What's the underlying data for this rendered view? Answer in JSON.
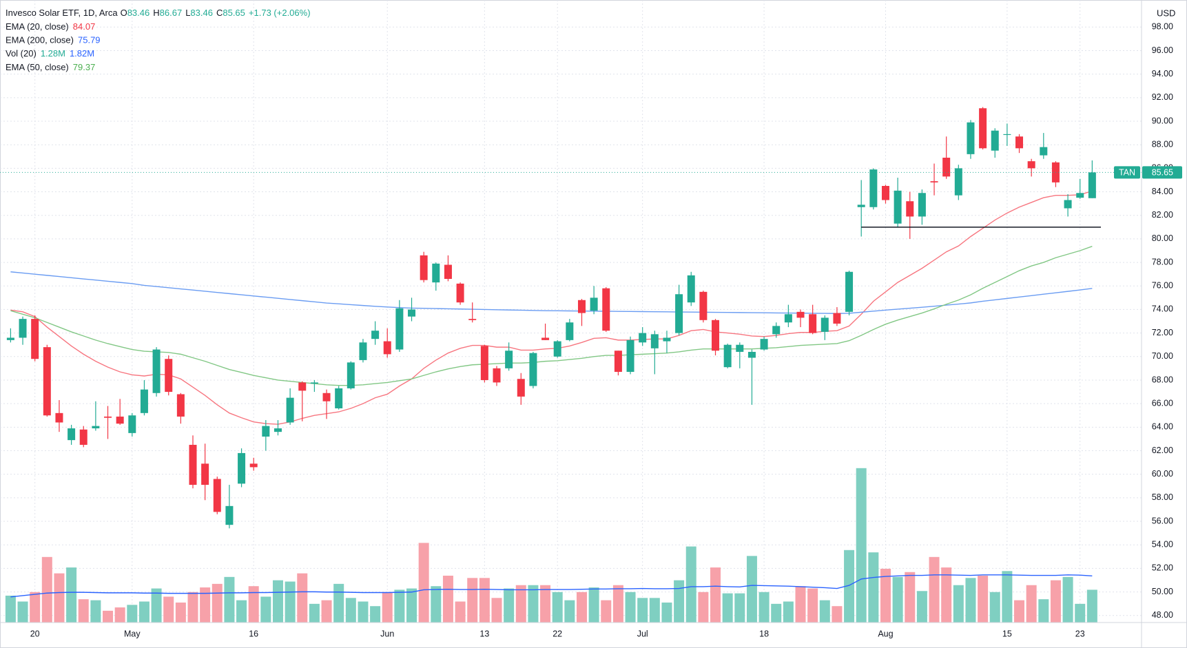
{
  "chart_data": {
    "type": "candlestick",
    "title": "Invesco Solar ETF, 1D, Arca",
    "ohlc_labels": [
      {
        "key": "O",
        "value": "83.46"
      },
      {
        "key": "H",
        "value": "86.67"
      },
      {
        "key": "L",
        "value": "83.46"
      },
      {
        "key": "C",
        "value": "85.65"
      }
    ],
    "change": "+1.73 (+2.06%)",
    "currency": "USD",
    "up_color": "#22ab94",
    "down_color": "#f23645",
    "volume_up_color": "#7fcfc1",
    "volume_down_color": "#f7a1a9",
    "grid": true,
    "categories": [
      null,
      null,
      "20",
      null,
      null,
      null,
      null,
      null,
      null,
      null,
      "May",
      null,
      null,
      null,
      null,
      null,
      null,
      null,
      null,
      null,
      "16",
      null,
      null,
      null,
      null,
      null,
      null,
      null,
      null,
      null,
      null,
      "Jun",
      null,
      null,
      null,
      null,
      null,
      null,
      null,
      "13",
      null,
      null,
      null,
      null,
      null,
      "22",
      null,
      null,
      null,
      null,
      null,
      null,
      "Jul",
      null,
      null,
      null,
      null,
      null,
      null,
      null,
      null,
      null,
      "18",
      null,
      null,
      null,
      null,
      null,
      null,
      null,
      null,
      null,
      "Aug",
      null,
      null,
      null,
      null,
      null,
      null,
      null,
      null,
      null,
      "15",
      null,
      null,
      null,
      null,
      null,
      "23",
      null
    ],
    "open": [
      71.4,
      71.6,
      73.2,
      70.8,
      65.2,
      62.9,
      63.8,
      63.9,
      64.9,
      64.9,
      63.5,
      65.2,
      66.9,
      69.8,
      66.8,
      62.5,
      60.9,
      59.6,
      55.7,
      59.2,
      60.9,
      63.2,
      63.6,
      64.4,
      67.8,
      67.7,
      66.9,
      65.6,
      67.3,
      69.7,
      71.5,
      71.3,
      70.6,
      73.4,
      78.6,
      76.3,
      77.8,
      76.2,
      73.2,
      70.9,
      69.0,
      69.0,
      68.1,
      67.5,
      71.6,
      70.0,
      71.4,
      74.8,
      73.9,
      75.8,
      70.5,
      68.7,
      71.2,
      70.7,
      71.3,
      72.0,
      74.6,
      75.5,
      73.1,
      69.1,
      70.4,
      69.9,
      70.6,
      71.9,
      72.9,
      73.8,
      73.6,
      72.1,
      73.7,
      73.8,
      82.7,
      82.7,
      84.5,
      81.3,
      83.2,
      81.9,
      84.9,
      86.9,
      83.7,
      87.2,
      91.1,
      87.5,
      88.9,
      88.7,
      86.6,
      87.1,
      86.5,
      82.6,
      83.5,
      83.46
    ],
    "high": [
      72.4,
      73.4,
      73.5,
      71.0,
      66.3,
      64.2,
      64.1,
      66.2,
      65.8,
      66.4,
      65.2,
      68.0,
      70.8,
      70.1,
      66.9,
      63.3,
      62.6,
      59.8,
      59.1,
      62.2,
      61.4,
      64.6,
      64.6,
      67.3,
      67.9,
      68.0,
      67.2,
      67.5,
      69.6,
      71.5,
      73.0,
      72.4,
      74.8,
      75.0,
      78.9,
      78.0,
      78.6,
      76.3,
      74.6,
      71.0,
      69.2,
      71.2,
      68.6,
      70.4,
      72.8,
      71.4,
      73.2,
      74.9,
      76.0,
      75.9,
      70.5,
      71.7,
      72.5,
      72.2,
      72.2,
      76.1,
      77.2,
      75.6,
      73.2,
      71.1,
      71.2,
      70.6,
      71.7,
      72.9,
      74.4,
      74.0,
      74.4,
      73.5,
      74.2,
      77.3,
      85.0,
      86.0,
      84.6,
      85.2,
      84.0,
      84.2,
      86.4,
      88.7,
      86.3,
      90.1,
      91.2,
      89.4,
      89.8,
      88.9,
      86.8,
      89.0,
      86.6,
      83.8,
      85.1,
      86.67
    ],
    "low": [
      71.2,
      71.0,
      69.6,
      64.9,
      63.6,
      62.5,
      62.3,
      63.7,
      63.0,
      64.2,
      63.2,
      65.0,
      66.6,
      66.7,
      64.3,
      58.8,
      57.8,
      56.6,
      55.4,
      58.9,
      60.3,
      62.0,
      63.3,
      64.2,
      64.5,
      67.0,
      64.7,
      65.5,
      67.2,
      69.5,
      71.0,
      69.9,
      70.4,
      73.0,
      76.3,
      75.6,
      76.4,
      74.4,
      72.9,
      67.8,
      67.5,
      68.8,
      65.9,
      67.3,
      71.4,
      69.9,
      71.3,
      72.6,
      73.6,
      72.1,
      68.4,
      68.5,
      70.9,
      68.5,
      70.3,
      71.8,
      74.3,
      72.9,
      70.1,
      69.0,
      69.0,
      65.9,
      70.5,
      71.6,
      72.5,
      72.5,
      71.9,
      71.4,
      72.6,
      73.5,
      80.2,
      82.5,
      83.0,
      81.0,
      80.0,
      81.2,
      83.7,
      85.1,
      83.3,
      86.8,
      87.6,
      86.9,
      87.9,
      87.3,
      85.3,
      86.8,
      84.4,
      81.9,
      83.4,
      83.46
    ],
    "close": [
      71.6,
      73.2,
      69.8,
      65.0,
      64.4,
      63.9,
      62.5,
      64.1,
      64.8,
      64.3,
      65.0,
      67.2,
      70.6,
      67.0,
      64.9,
      59.1,
      59.1,
      56.8,
      57.3,
      61.8,
      60.6,
      64.1,
      63.9,
      66.5,
      67.1,
      67.8,
      66.2,
      67.3,
      69.5,
      71.2,
      72.2,
      70.2,
      74.1,
      74.0,
      76.5,
      77.9,
      76.6,
      74.6,
      73.1,
      68.0,
      67.8,
      70.5,
      66.6,
      70.3,
      71.4,
      71.3,
      72.9,
      73.7,
      75.0,
      72.2,
      68.7,
      71.4,
      72.0,
      71.9,
      71.6,
      75.3,
      76.9,
      73.1,
      70.5,
      71.0,
      71.0,
      70.4,
      71.5,
      72.6,
      73.6,
      73.3,
      72.0,
      73.3,
      72.8,
      77.2,
      82.9,
      85.9,
      83.3,
      84.1,
      81.9,
      83.9,
      84.8,
      85.3,
      86.0,
      89.9,
      87.7,
      89.2,
      88.9,
      87.7,
      86.0,
      87.8,
      84.8,
      83.3,
      83.9,
      85.65
    ],
    "volume": [
      1.05,
      0.82,
      1.19,
      2.56,
      1.92,
      2.15,
      0.91,
      0.87,
      0.46,
      0.59,
      0.69,
      0.82,
      1.33,
      1.01,
      0.78,
      1.19,
      1.37,
      1.51,
      1.78,
      0.87,
      1.42,
      1.01,
      1.65,
      1.6,
      1.92,
      0.73,
      0.87,
      1.51,
      0.96,
      0.82,
      0.64,
      1.19,
      1.28,
      1.33,
      3.11,
      1.42,
      1.83,
      0.82,
      1.74,
      1.74,
      0.96,
      1.33,
      1.46,
      1.46,
      1.46,
      1.19,
      0.87,
      1.19,
      1.37,
      0.87,
      1.46,
      1.19,
      0.96,
      0.96,
      0.78,
      1.65,
      2.97,
      1.19,
      2.15,
      1.14,
      1.14,
      2.6,
      1.19,
      0.73,
      0.82,
      1.42,
      1.33,
      0.87,
      0.64,
      2.83,
      6.03,
      2.74,
      2.1,
      1.78,
      1.97,
      1.23,
      2.56,
      2.15,
      1.46,
      1.74,
      1.83,
      1.19,
      2.01,
      0.87,
      1.46,
      0.91,
      1.65,
      1.78,
      0.73,
      1.28
    ],
    "indicators": [
      {
        "name": "EMA (20, close)",
        "color": "#f7757f",
        "labels": [
          "84.07"
        ],
        "label_colors": [
          "#f23645"
        ],
        "pane": "price",
        "values": [
          73.95,
          73.8,
          73.4,
          72.5,
          71.7,
          70.9,
          70.2,
          69.6,
          69.1,
          68.7,
          68.45,
          68.35,
          68.5,
          68.45,
          68.1,
          67.4,
          66.7,
          65.9,
          65.2,
          64.8,
          64.45,
          64.3,
          64.25,
          64.45,
          64.75,
          65.0,
          65.15,
          65.3,
          65.6,
          66.0,
          66.5,
          66.8,
          67.5,
          68.1,
          69.0,
          69.7,
          70.3,
          70.7,
          70.95,
          70.95,
          70.8,
          70.8,
          70.55,
          70.55,
          70.65,
          70.7,
          70.9,
          71.2,
          71.55,
          71.6,
          71.4,
          71.4,
          71.45,
          71.5,
          71.5,
          71.8,
          72.2,
          72.3,
          72.1,
          72.0,
          71.9,
          71.75,
          71.7,
          71.8,
          71.95,
          72.05,
          72.05,
          72.15,
          72.2,
          72.6,
          73.6,
          74.7,
          75.5,
          76.3,
          76.9,
          77.5,
          78.2,
          78.9,
          79.4,
          80.2,
          80.9,
          81.6,
          82.2,
          82.7,
          83.1,
          83.5,
          83.7,
          83.7,
          83.75,
          84.07
        ]
      },
      {
        "name": "EMA (200, close)",
        "color": "#6a9cf2",
        "labels": [
          "75.79"
        ],
        "label_colors": [
          "#2962ff"
        ],
        "pane": "price",
        "values": [
          77.2,
          77.1,
          77.0,
          76.9,
          76.8,
          76.7,
          76.6,
          76.5,
          76.4,
          76.3,
          76.2,
          76.05,
          75.95,
          75.85,
          75.75,
          75.65,
          75.55,
          75.45,
          75.35,
          75.25,
          75.15,
          75.05,
          74.95,
          74.85,
          74.75,
          74.65,
          74.55,
          74.48,
          74.41,
          74.34,
          74.27,
          74.21,
          74.16,
          74.12,
          74.1,
          74.08,
          74.06,
          74.04,
          74.02,
          74.0,
          73.98,
          73.96,
          73.94,
          73.92,
          73.9,
          73.89,
          73.88,
          73.87,
          73.86,
          73.85,
          73.84,
          73.83,
          73.82,
          73.81,
          73.8,
          73.79,
          73.78,
          73.77,
          73.76,
          73.75,
          73.74,
          73.73,
          73.72,
          73.71,
          73.7,
          73.69,
          73.68,
          73.67,
          73.66,
          73.68,
          73.77,
          73.86,
          73.95,
          74.03,
          74.11,
          74.19,
          74.28,
          74.37,
          74.46,
          74.56,
          74.7,
          74.82,
          74.94,
          75.06,
          75.18,
          75.3,
          75.42,
          75.54,
          75.66,
          75.79
        ]
      },
      {
        "name": "Vol (20)",
        "color": "#2962ff",
        "labels": [
          "1.28M",
          "1.82M"
        ],
        "label_colors": [
          "#22ab94",
          "#2962ff"
        ],
        "pane": "volume",
        "values": [
          1.0,
          1.05,
          1.1,
          1.15,
          1.17,
          1.18,
          1.18,
          1.17,
          1.16,
          1.16,
          1.16,
          1.15,
          1.15,
          1.14,
          1.14,
          1.14,
          1.14,
          1.15,
          1.16,
          1.16,
          1.17,
          1.17,
          1.18,
          1.19,
          1.2,
          1.2,
          1.19,
          1.19,
          1.18,
          1.17,
          1.17,
          1.17,
          1.18,
          1.19,
          1.28,
          1.29,
          1.3,
          1.29,
          1.29,
          1.3,
          1.29,
          1.28,
          1.28,
          1.28,
          1.29,
          1.29,
          1.29,
          1.3,
          1.31,
          1.31,
          1.32,
          1.32,
          1.33,
          1.32,
          1.32,
          1.33,
          1.4,
          1.4,
          1.42,
          1.4,
          1.39,
          1.45,
          1.44,
          1.43,
          1.42,
          1.4,
          1.38,
          1.36,
          1.33,
          1.45,
          1.7,
          1.76,
          1.8,
          1.82,
          1.84,
          1.84,
          1.86,
          1.86,
          1.85,
          1.84,
          1.86,
          1.86,
          1.86,
          1.85,
          1.84,
          1.84,
          1.84,
          1.86,
          1.85,
          1.82
        ]
      },
      {
        "name": "EMA (50, close)",
        "color": "#81c784",
        "labels": [
          "79.37"
        ],
        "label_colors": [
          "#4caf50"
        ],
        "pane": "price",
        "values": [
          73.9,
          73.6,
          73.3,
          72.9,
          72.5,
          72.1,
          71.75,
          71.4,
          71.1,
          70.85,
          70.6,
          70.45,
          70.4,
          70.35,
          70.2,
          69.9,
          69.6,
          69.25,
          68.9,
          68.65,
          68.4,
          68.2,
          68.0,
          67.9,
          67.8,
          67.7,
          67.6,
          67.55,
          67.55,
          67.6,
          67.7,
          67.8,
          67.95,
          68.1,
          68.4,
          68.7,
          68.95,
          69.15,
          69.3,
          69.35,
          69.4,
          69.45,
          69.45,
          69.5,
          69.6,
          69.65,
          69.75,
          69.85,
          70.0,
          70.1,
          70.1,
          70.15,
          70.2,
          70.25,
          70.3,
          70.4,
          70.55,
          70.65,
          70.65,
          70.65,
          70.65,
          70.65,
          70.7,
          70.75,
          70.85,
          70.95,
          71.0,
          71.05,
          71.1,
          71.35,
          71.8,
          72.3,
          72.75,
          73.1,
          73.4,
          73.7,
          74.05,
          74.45,
          74.8,
          75.25,
          75.8,
          76.3,
          76.8,
          77.3,
          77.7,
          78.0,
          78.4,
          78.7,
          79.0,
          79.37
        ]
      }
    ],
    "last_price": {
      "symbol": "TAN",
      "value": 85.65
    },
    "support_line": 81.0,
    "ylim": [
      47.4,
      100.3
    ],
    "yticks": [
      {
        "value": 48,
        "label": "48.00"
      },
      {
        "value": 50,
        "label": "50.00"
      },
      {
        "value": 52,
        "label": "52.00"
      },
      {
        "value": 54,
        "label": "54.00"
      },
      {
        "value": 56,
        "label": "56.00"
      },
      {
        "value": 58,
        "label": "58.00"
      },
      {
        "value": 60,
        "label": "60.00"
      },
      {
        "value": 62,
        "label": "62.00"
      },
      {
        "value": 64,
        "label": "64.00"
      },
      {
        "value": 66,
        "label": "66.00"
      },
      {
        "value": 68,
        "label": "68.00"
      },
      {
        "value": 70,
        "label": "70.00"
      },
      {
        "value": 72,
        "label": "72.00"
      },
      {
        "value": 74,
        "label": "74.00"
      },
      {
        "value": 76,
        "label": "76.00"
      },
      {
        "value": 78,
        "label": "78.00"
      },
      {
        "value": 80,
        "label": "80.00"
      },
      {
        "value": 82,
        "label": "82.00"
      },
      {
        "value": 84,
        "label": "84.00"
      },
      {
        "value": 86,
        "label": "86.00"
      },
      {
        "value": 88,
        "label": "88.00"
      },
      {
        "value": 90,
        "label": "90.00"
      },
      {
        "value": 92,
        "label": "92.00"
      },
      {
        "value": 94,
        "label": "94.00"
      },
      {
        "value": 96,
        "label": "96.00"
      },
      {
        "value": 98,
        "label": "98.00"
      }
    ]
  }
}
